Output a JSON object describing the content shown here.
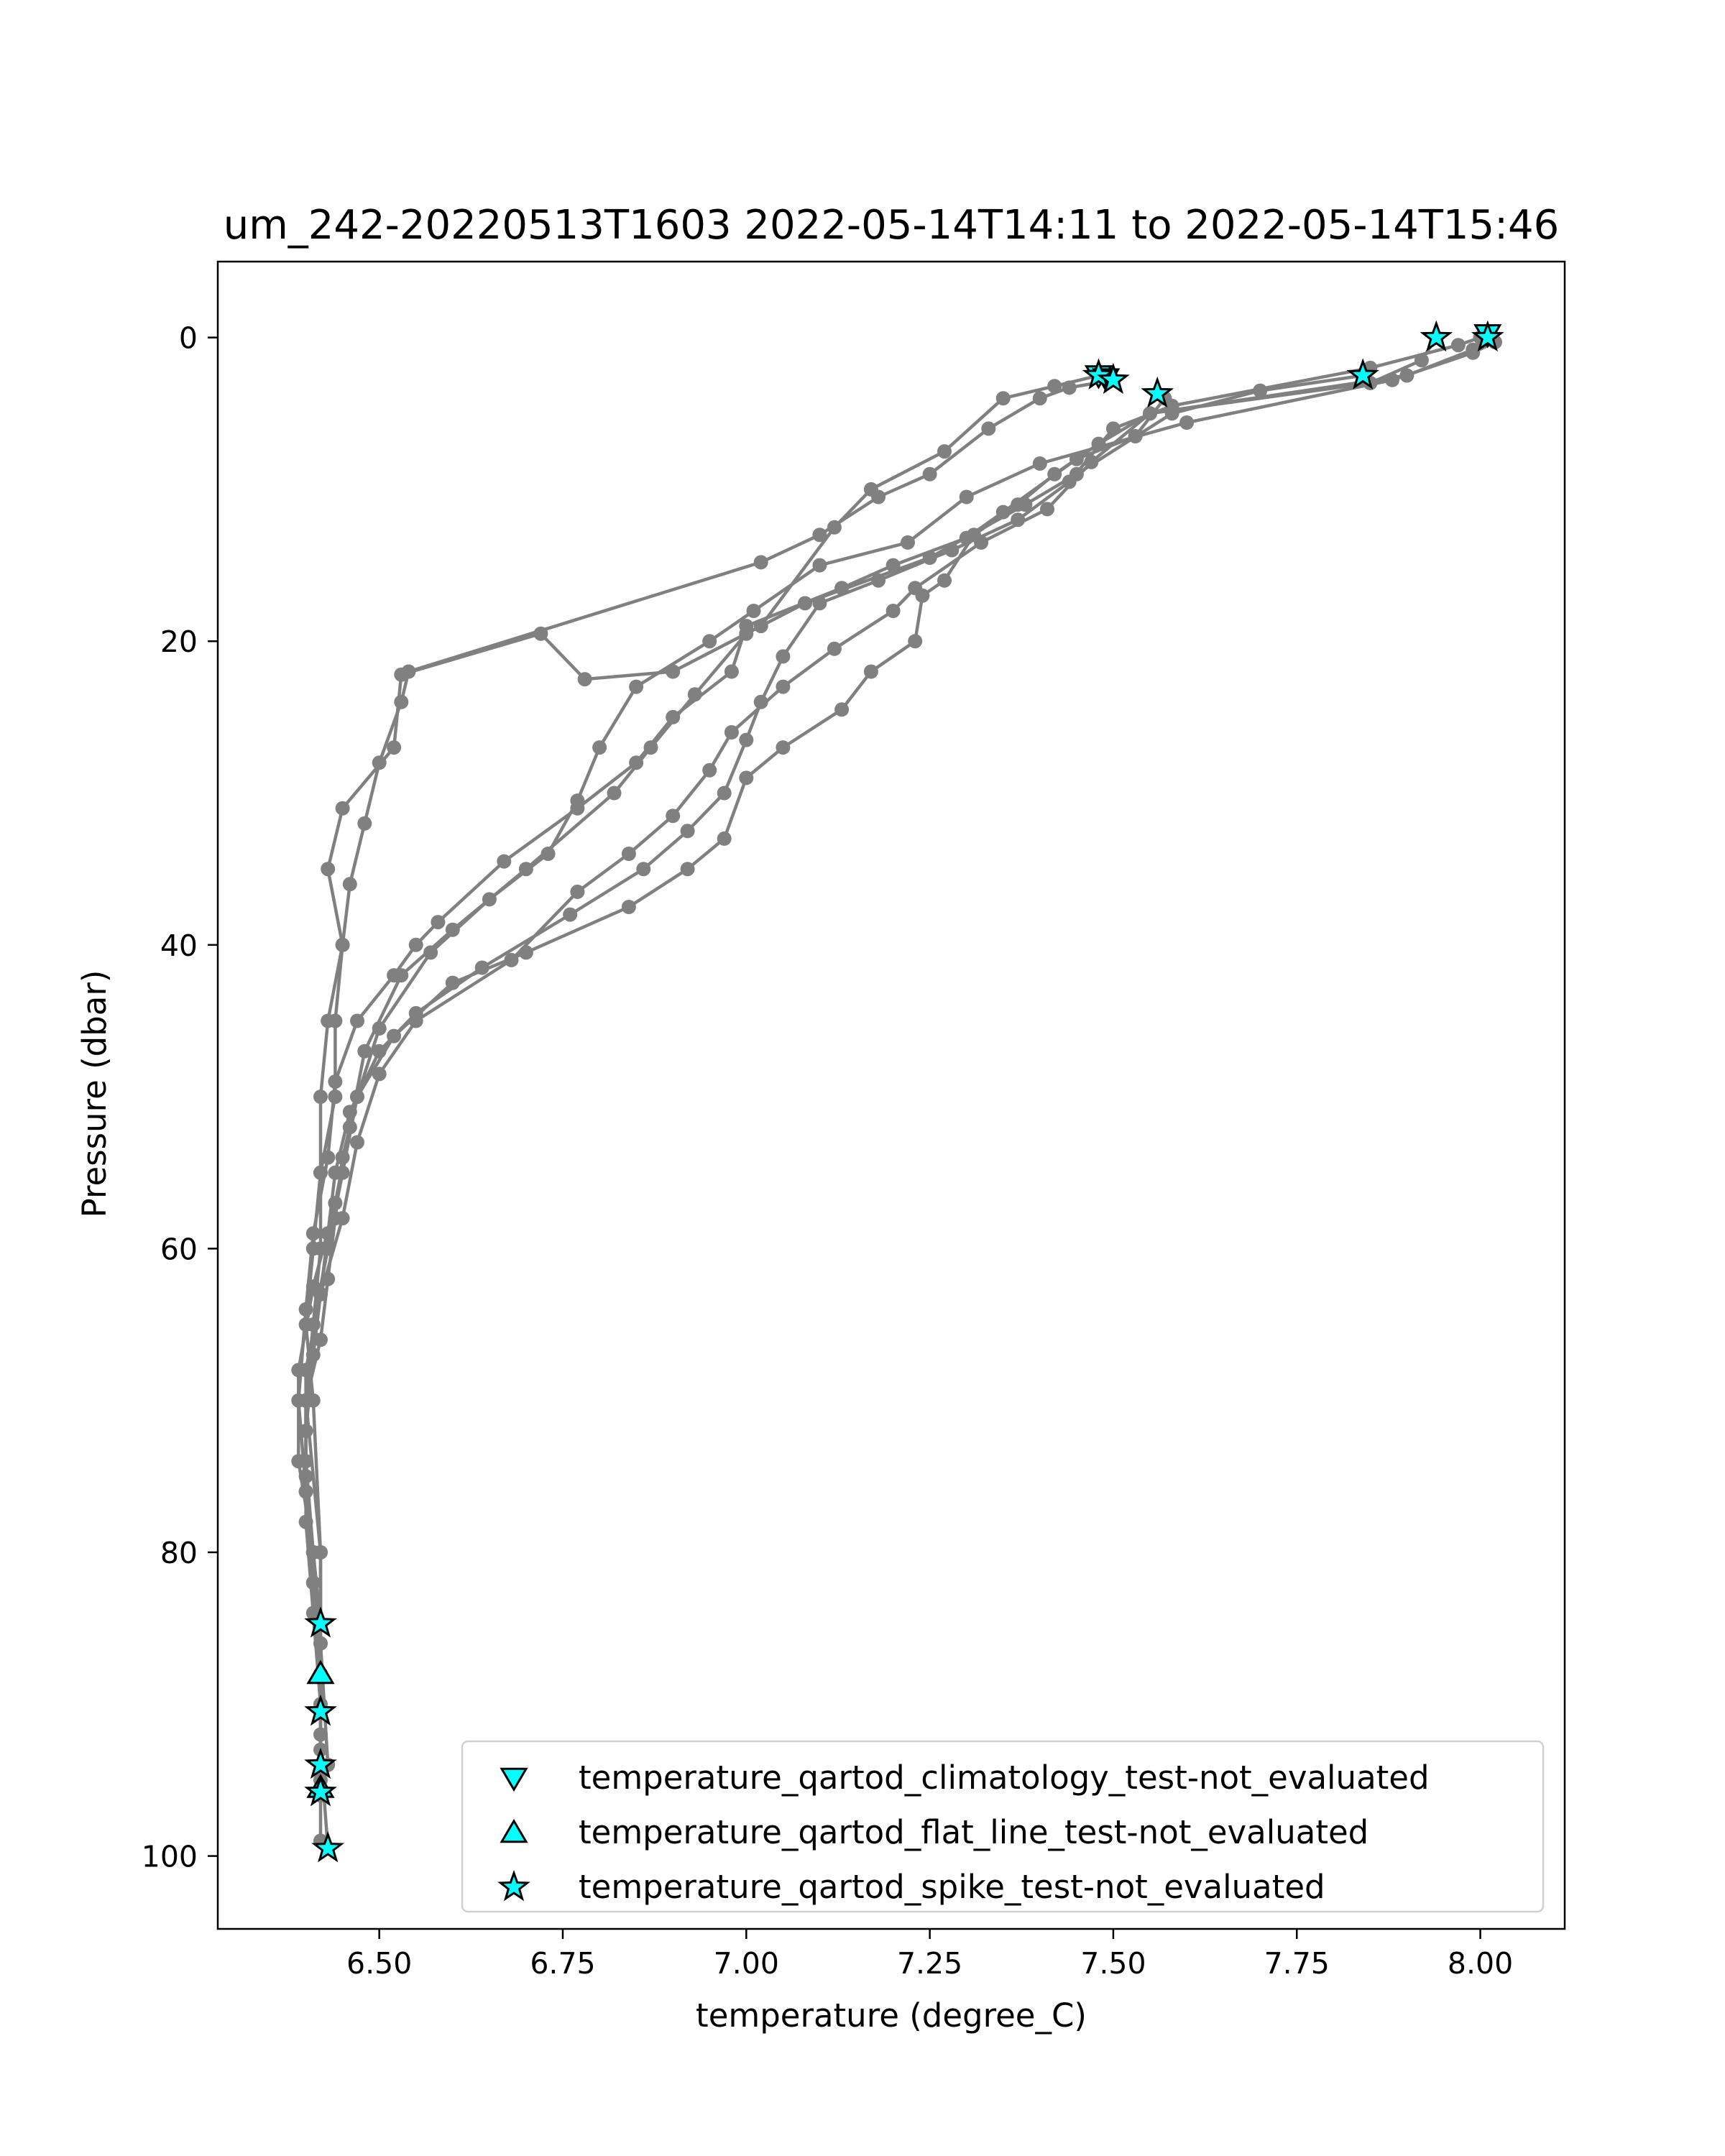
{
  "chart_data": {
    "type": "scatter",
    "title": "um_242-20220513T1603 2022-05-14T14:11 to 2022-05-14T15:46",
    "xlabel": "temperature (degree_C)",
    "ylabel": "Pressure (dbar)",
    "xlim": [
      6.28,
      8.115
    ],
    "ylim": [
      104.8,
      -5
    ],
    "y_inverted": true,
    "grid": false,
    "legend_placement": "lower right",
    "x_ticks": [
      6.5,
      6.75,
      7.0,
      7.25,
      7.5,
      7.75,
      8.0
    ],
    "x_tick_labels": [
      "6.50",
      "6.75",
      "7.00",
      "7.25",
      "7.50",
      "7.75",
      "8.00"
    ],
    "y_ticks": [
      0,
      20,
      40,
      60,
      80,
      100
    ],
    "y_tick_labels": [
      "0",
      "20",
      "40",
      "60",
      "80",
      "100"
    ],
    "profile_color": "#808080",
    "marker_color": "#00ffff",
    "profiles": [
      [
        [
          8.02,
          0.3
        ],
        [
          7.99,
          1.0
        ],
        [
          7.88,
          2.8
        ],
        [
          7.6,
          5.6
        ],
        [
          7.4,
          8.3
        ],
        [
          7.3,
          10.5
        ],
        [
          7.22,
          13.5
        ],
        [
          7.1,
          15.0
        ],
        [
          7.01,
          18.0
        ],
        [
          6.95,
          20.0
        ],
        [
          6.85,
          23.0
        ],
        [
          6.8,
          27.0
        ],
        [
          6.77,
          30.5
        ],
        [
          6.73,
          34.0
        ],
        [
          6.65,
          37.0
        ],
        [
          6.57,
          40.5
        ],
        [
          6.5,
          45.5
        ],
        [
          6.47,
          50.0
        ],
        [
          6.45,
          55.0
        ],
        [
          6.43,
          60.0
        ],
        [
          6.41,
          65.0
        ],
        [
          6.4,
          70.0
        ],
        [
          6.4,
          75.0
        ],
        [
          6.41,
          80.0
        ],
        [
          6.42,
          84.7
        ]
      ],
      [
        [
          7.84,
          2.5
        ],
        [
          7.7,
          3.5
        ],
        [
          7.58,
          5.0
        ],
        [
          7.45,
          9.0
        ],
        [
          7.38,
          11.0
        ],
        [
          7.25,
          14.5
        ],
        [
          7.08,
          17.5
        ],
        [
          7.0,
          19.5
        ],
        [
          6.93,
          23.5
        ],
        [
          6.87,
          27.0
        ],
        [
          6.82,
          30.0
        ],
        [
          6.7,
          35.0
        ],
        [
          6.6,
          39.0
        ],
        [
          6.53,
          42.0
        ],
        [
          6.48,
          47.0
        ],
        [
          6.46,
          52.0
        ],
        [
          6.44,
          57.0
        ],
        [
          6.41,
          62.5
        ],
        [
          6.39,
          68.0
        ],
        [
          6.39,
          74.0
        ],
        [
          6.41,
          80.0
        ],
        [
          6.42,
          88.0
        ]
      ],
      [
        [
          7.48,
          2.5
        ],
        [
          7.42,
          3.2
        ],
        [
          7.35,
          4.0
        ],
        [
          7.27,
          7.5
        ],
        [
          7.17,
          10.0
        ],
        [
          7.12,
          12.5
        ],
        [
          7.02,
          19.0
        ],
        [
          6.9,
          22.0
        ],
        [
          6.78,
          22.5
        ],
        [
          6.72,
          19.5
        ],
        [
          6.53,
          22.2
        ],
        [
          6.52,
          27.0
        ],
        [
          6.45,
          31.0
        ],
        [
          6.43,
          35.0
        ],
        [
          6.45,
          40.0
        ],
        [
          6.44,
          45.0
        ],
        [
          6.44,
          50.0
        ],
        [
          6.42,
          55.0
        ],
        [
          6.42,
          60.0
        ],
        [
          6.41,
          65.0
        ],
        [
          6.4,
          70.0
        ],
        [
          6.42,
          80.0
        ],
        [
          6.42,
          90.5
        ]
      ],
      [
        [
          7.5,
          2.8
        ],
        [
          7.44,
          3.3
        ],
        [
          7.4,
          4.0
        ],
        [
          7.33,
          6.0
        ],
        [
          7.25,
          9.0
        ],
        [
          7.18,
          10.5
        ],
        [
          7.1,
          13.0
        ],
        [
          7.02,
          14.8
        ],
        [
          6.54,
          22.0
        ],
        [
          6.53,
          24.0
        ],
        [
          6.5,
          28.0
        ],
        [
          6.48,
          32.0
        ],
        [
          6.46,
          36.0
        ],
        [
          6.45,
          40.0
        ],
        [
          6.43,
          45.0
        ],
        [
          6.42,
          50.0
        ],
        [
          6.42,
          55.0
        ],
        [
          6.41,
          60.0
        ],
        [
          6.4,
          65.0
        ],
        [
          6.41,
          70.0
        ],
        [
          6.42,
          80.0
        ],
        [
          6.42,
          86.0
        ],
        [
          6.43,
          94.0
        ]
      ],
      [
        [
          7.56,
          3.7
        ],
        [
          7.57,
          4.0
        ],
        [
          7.53,
          6.5
        ],
        [
          7.45,
          8.0
        ],
        [
          7.35,
          11.5
        ],
        [
          7.3,
          13.2
        ],
        [
          7.2,
          15.0
        ],
        [
          7.13,
          16.5
        ],
        [
          7.0,
          19.0
        ],
        [
          6.98,
          22.0
        ],
        [
          6.9,
          25.0
        ],
        [
          6.85,
          28.0
        ],
        [
          6.77,
          31.0
        ],
        [
          6.67,
          34.5
        ],
        [
          6.58,
          38.5
        ],
        [
          6.55,
          40.0
        ],
        [
          6.52,
          42.0
        ],
        [
          6.47,
          45.0
        ],
        [
          6.44,
          49.0
        ],
        [
          6.43,
          54.0
        ],
        [
          6.41,
          59.0
        ],
        [
          6.4,
          64.0
        ],
        [
          6.39,
          70.0
        ],
        [
          6.4,
          76.0
        ],
        [
          6.41,
          82.0
        ],
        [
          6.42,
          88.0
        ],
        [
          6.42,
          95.0
        ]
      ],
      [
        [
          7.94,
          0.0
        ],
        [
          7.92,
          1.5
        ],
        [
          7.85,
          3.0
        ],
        [
          7.55,
          5.0
        ],
        [
          7.47,
          8.2
        ],
        [
          7.41,
          11.3
        ],
        [
          7.32,
          13.5
        ],
        [
          7.23,
          16.5
        ],
        [
          7.2,
          18.0
        ],
        [
          7.12,
          20.5
        ],
        [
          7.05,
          23.0
        ],
        [
          6.98,
          26.0
        ],
        [
          6.95,
          28.5
        ],
        [
          6.9,
          31.5
        ],
        [
          6.84,
          34.0
        ],
        [
          6.77,
          36.5
        ],
        [
          6.68,
          41.0
        ],
        [
          6.55,
          45.0
        ],
        [
          6.5,
          48.5
        ],
        [
          6.47,
          53.0
        ],
        [
          6.45,
          58.0
        ],
        [
          6.42,
          63.0
        ],
        [
          6.4,
          68.0
        ],
        [
          6.4,
          74.0
        ],
        [
          6.41,
          80.0
        ],
        [
          6.42,
          86.0
        ],
        [
          6.42,
          92.0
        ],
        [
          6.42,
          96.0
        ]
      ],
      [
        [
          8.01,
          0.0
        ],
        [
          7.99,
          0.8
        ],
        [
          7.9,
          2.5
        ],
        [
          7.55,
          5.0
        ],
        [
          7.48,
          7.0
        ],
        [
          7.42,
          9.0
        ],
        [
          7.37,
          11.0
        ],
        [
          7.31,
          13.0
        ],
        [
          7.27,
          16.0
        ],
        [
          7.24,
          17.0
        ],
        [
          7.23,
          20.0
        ],
        [
          7.17,
          22.0
        ],
        [
          7.13,
          24.5
        ],
        [
          7.05,
          27.0
        ],
        [
          7.0,
          29.0
        ],
        [
          6.97,
          33.0
        ],
        [
          6.92,
          35.0
        ],
        [
          6.84,
          37.5
        ],
        [
          6.7,
          40.5
        ],
        [
          6.6,
          42.5
        ],
        [
          6.52,
          46.0
        ],
        [
          6.47,
          50.0
        ],
        [
          6.45,
          54.0
        ],
        [
          6.44,
          58.0
        ],
        [
          6.43,
          62.0
        ],
        [
          6.42,
          66.0
        ],
        [
          6.4,
          70.0
        ],
        [
          6.4,
          76.0
        ],
        [
          6.41,
          82.0
        ],
        [
          6.42,
          88.0
        ],
        [
          6.42,
          93.0
        ],
        [
          6.43,
          99.5
        ]
      ],
      [
        [
          8.0,
          0.0
        ],
        [
          7.97,
          0.5
        ],
        [
          7.85,
          2.0
        ],
        [
          7.58,
          4.5
        ],
        [
          7.5,
          6.0
        ],
        [
          7.44,
          9.5
        ],
        [
          7.37,
          12.0
        ],
        [
          7.28,
          14.0
        ],
        [
          7.18,
          16.0
        ],
        [
          7.1,
          17.5
        ],
        [
          7.05,
          21.0
        ],
        [
          7.02,
          24.0
        ],
        [
          7.0,
          26.5
        ],
        [
          6.97,
          30.0
        ],
        [
          6.92,
          32.5
        ],
        [
          6.86,
          35.0
        ],
        [
          6.76,
          38.0
        ],
        [
          6.64,
          41.5
        ],
        [
          6.55,
          44.5
        ],
        [
          6.5,
          47.0
        ],
        [
          6.46,
          51.0
        ],
        [
          6.44,
          55.0
        ],
        [
          6.43,
          59.0
        ],
        [
          6.42,
          63.0
        ],
        [
          6.41,
          67.0
        ],
        [
          6.4,
          72.0
        ],
        [
          6.4,
          78.0
        ],
        [
          6.41,
          84.0
        ],
        [
          6.42,
          90.0
        ],
        [
          6.42,
          96.0
        ],
        [
          6.42,
          99.0
        ]
      ]
    ],
    "flag_series": [
      {
        "name": "temperature_qartod_climatology_test-not_evaluated",
        "marker": "triangle-down",
        "points": [
          [
            8.01,
            -0.2
          ],
          [
            7.48,
            2.5
          ],
          [
            7.49,
            2.7
          ]
        ]
      },
      {
        "name": "temperature_qartod_flat_line_test-not_evaluated",
        "marker": "triangle-up",
        "points": [
          [
            6.42,
            88.0
          ],
          [
            6.42,
            95.5
          ]
        ]
      },
      {
        "name": "temperature_qartod_spike_test-not_evaluated",
        "marker": "star",
        "points": [
          [
            8.01,
            0.0
          ],
          [
            7.94,
            0.0
          ],
          [
            7.84,
            2.5
          ],
          [
            7.48,
            2.5
          ],
          [
            7.5,
            2.8
          ],
          [
            7.56,
            3.7
          ],
          [
            6.42,
            84.7
          ],
          [
            6.42,
            90.5
          ],
          [
            6.42,
            94.0
          ],
          [
            6.42,
            95.8
          ],
          [
            6.43,
            99.5
          ]
        ]
      }
    ]
  }
}
